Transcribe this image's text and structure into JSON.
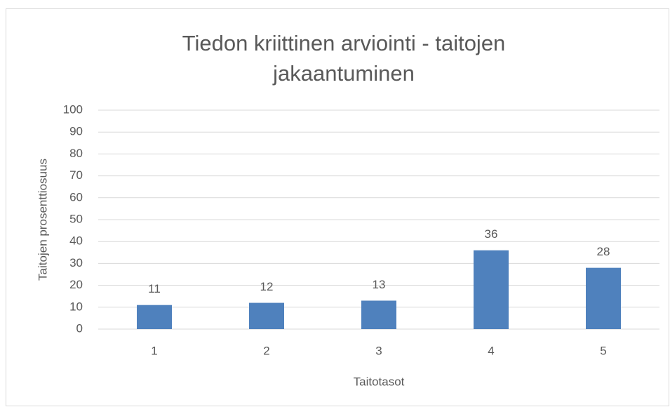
{
  "chart_data": {
    "type": "bar",
    "title": "Tiedon kriittinen arviointi - taitojen jakaantuminen",
    "x_label": "Taitotasot",
    "y_label": "Taitojen prosenttiosuus",
    "categories": [
      "1",
      "2",
      "3",
      "4",
      "5"
    ],
    "values": [
      11,
      12,
      13,
      36,
      28
    ],
    "color": "#4f81bd",
    "ylim": [
      0,
      100
    ],
    "yticks": [
      0,
      10,
      20,
      30,
      40,
      50,
      60,
      70,
      80,
      90,
      100
    ],
    "grid": true
  }
}
